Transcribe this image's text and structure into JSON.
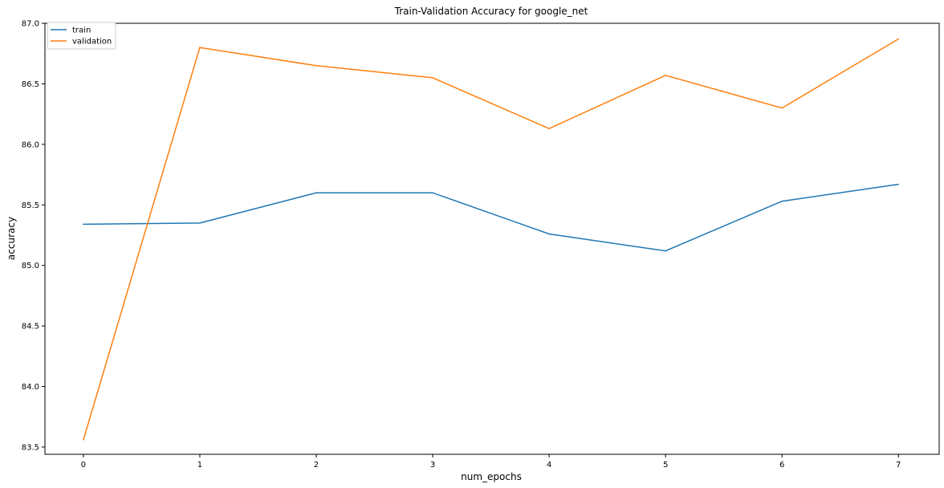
{
  "chart_data": {
    "type": "line",
    "title": "Train-Validation Accuracy for google_net",
    "xlabel": "num_epochs",
    "ylabel": "accuracy",
    "x": [
      0,
      1,
      2,
      3,
      4,
      5,
      6,
      7
    ],
    "xticks": [
      "0",
      "1",
      "2",
      "3",
      "4",
      "5",
      "6",
      "7"
    ],
    "yticks": [
      "83.5",
      "84.0",
      "84.5",
      "85.0",
      "85.5",
      "86.0",
      "86.5",
      "87.0"
    ],
    "xlim": [
      -0.33,
      7.35
    ],
    "ylim": [
      83.44,
      87.0
    ],
    "grid": false,
    "legend_position": "top-left",
    "series": [
      {
        "name": "train",
        "color": "#1f77b4",
        "values": [
          85.34,
          85.35,
          85.6,
          85.6,
          85.26,
          85.12,
          85.53,
          85.67
        ]
      },
      {
        "name": "validation",
        "color": "#ff7f0e",
        "values": [
          83.56,
          86.8,
          86.65,
          86.55,
          86.13,
          86.57,
          86.3,
          86.87
        ]
      }
    ]
  }
}
